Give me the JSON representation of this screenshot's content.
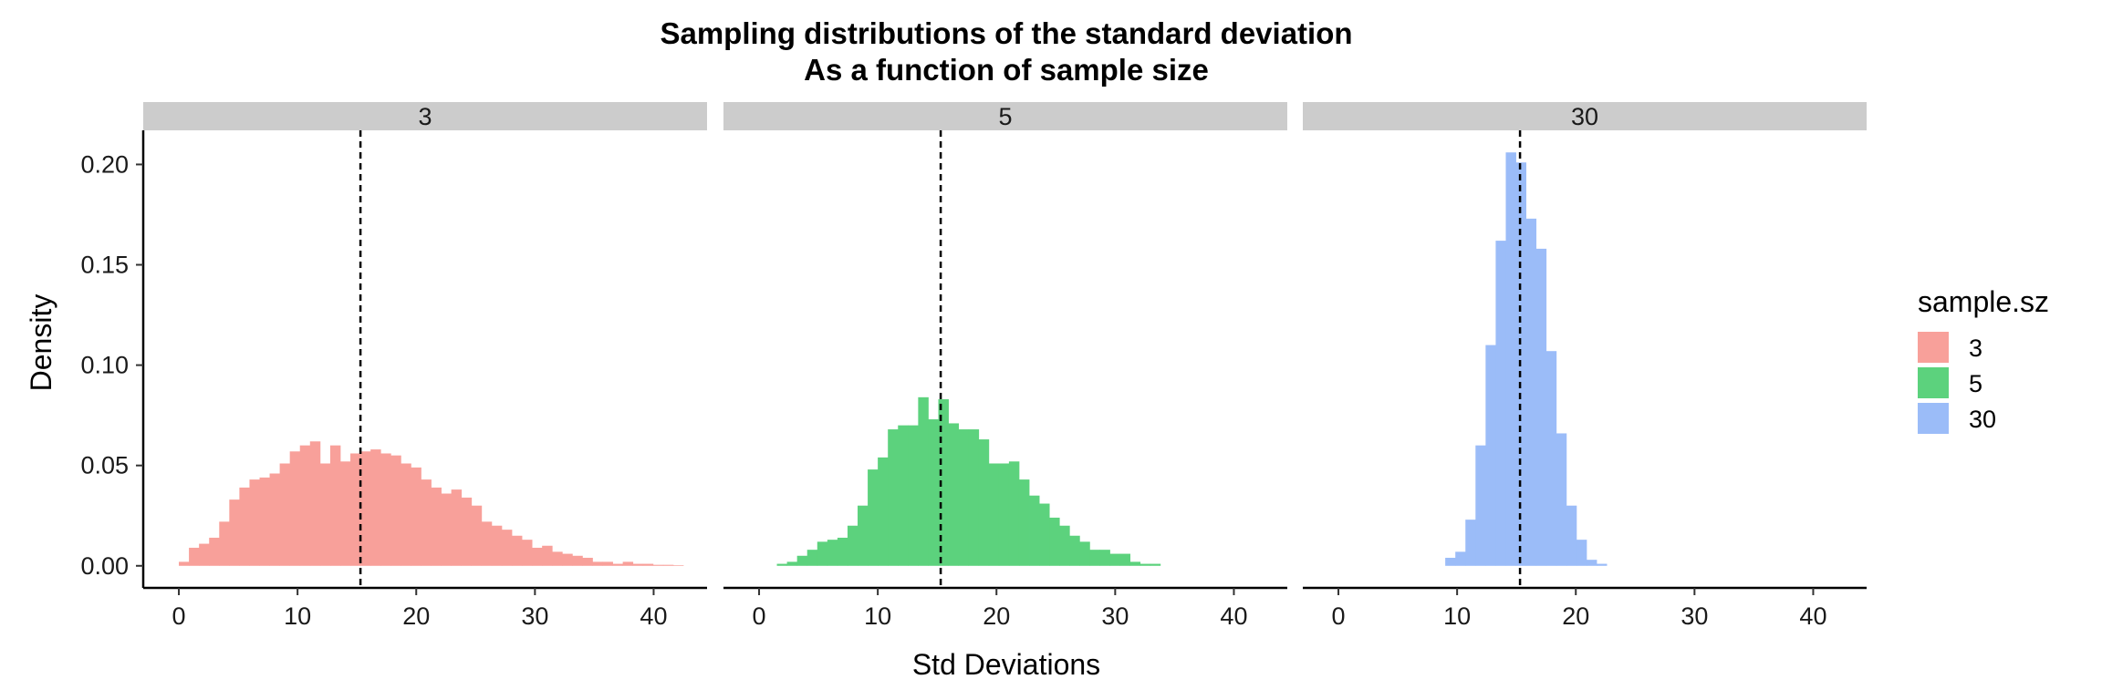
{
  "chart_data": {
    "type": "bar",
    "title": "Sampling distributions of the standard deviation",
    "subtitle": "As a function of sample size",
    "xlabel": "Std Deviations",
    "ylabel": "Density",
    "xlim": [
      -3,
      44.5
    ],
    "ylim": [
      -0.011,
      0.217
    ],
    "x_ticks": [
      0,
      10,
      20,
      30,
      40
    ],
    "y_ticks": [
      0.0,
      0.05,
      0.1,
      0.15,
      0.2
    ],
    "y_tick_labels": [
      "0.00",
      "0.05",
      "0.10",
      "0.15",
      "0.20"
    ],
    "bin_width": 0.85,
    "vline_x": 15.3,
    "vline_style": "dashed",
    "grid": false,
    "legend": {
      "title": "sample.sz",
      "position": "right"
    },
    "facets": [
      {
        "strip_label": "3",
        "series_name": "3",
        "color": "#F8A09A",
        "bin_start": 0,
        "values": [
          0.002,
          0.009,
          0.011,
          0.014,
          0.022,
          0.033,
          0.039,
          0.043,
          0.044,
          0.046,
          0.051,
          0.057,
          0.06,
          0.062,
          0.051,
          0.06,
          0.052,
          0.056,
          0.057,
          0.058,
          0.056,
          0.055,
          0.051,
          0.049,
          0.043,
          0.039,
          0.036,
          0.038,
          0.034,
          0.03,
          0.022,
          0.02,
          0.018,
          0.015,
          0.013,
          0.009,
          0.01,
          0.007,
          0.006,
          0.005,
          0.004,
          0.002,
          0.002,
          0.001,
          0.002,
          0.001,
          0.001,
          0.0005,
          0.0005,
          0.0003
        ]
      },
      {
        "strip_label": "5",
        "series_name": "5",
        "color": "#5CD27D",
        "bin_start": 1.5,
        "values": [
          0.001,
          0.002,
          0.005,
          0.008,
          0.012,
          0.013,
          0.014,
          0.02,
          0.03,
          0.048,
          0.054,
          0.068,
          0.07,
          0.07,
          0.084,
          0.073,
          0.083,
          0.071,
          0.068,
          0.068,
          0.063,
          0.051,
          0.051,
          0.052,
          0.043,
          0.035,
          0.031,
          0.024,
          0.02,
          0.015,
          0.012,
          0.008,
          0.008,
          0.006,
          0.006,
          0.002,
          0.001,
          0.001
        ]
      },
      {
        "strip_label": "30",
        "series_name": "30",
        "color": "#9BBCF8",
        "bin_start": 9.0,
        "values": [
          0.004,
          0.007,
          0.023,
          0.06,
          0.11,
          0.162,
          0.206,
          0.201,
          0.173,
          0.158,
          0.107,
          0.066,
          0.03,
          0.013,
          0.003,
          0.001
        ]
      }
    ]
  }
}
